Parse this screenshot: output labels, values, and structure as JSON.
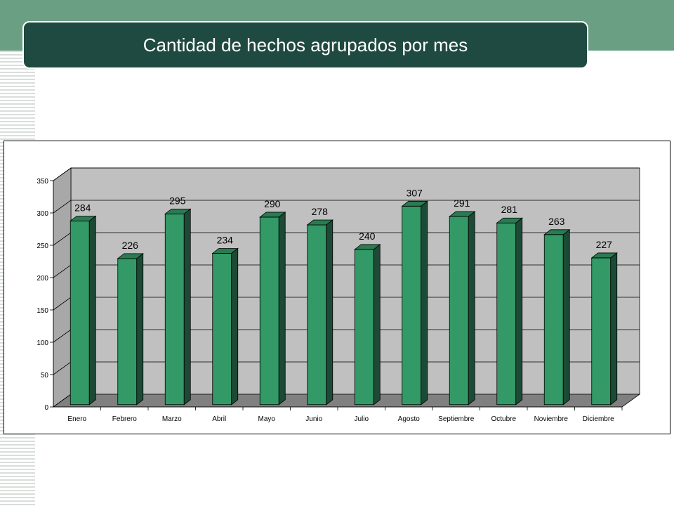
{
  "slide": {
    "title": "Cantidad de hechos agrupados por mes"
  },
  "colors": {
    "header_band": "#6a9f84",
    "title_bar": "#1f4a41",
    "bar_front": "#339966",
    "bar_side": "#1d4a36",
    "bar_top": "#2a7a52",
    "plot_back": "#c0c0c0",
    "plot_floor": "#808080"
  },
  "chart_data": {
    "type": "bar",
    "categories": [
      "Enero",
      "Febrero",
      "Marzo",
      "Abril",
      "Mayo",
      "Junio",
      "Julio",
      "Agosto",
      "Septiembre",
      "Octubre",
      "Noviembre",
      "Diciembre"
    ],
    "values": [
      284,
      226,
      295,
      234,
      290,
      278,
      240,
      307,
      291,
      281,
      263,
      227
    ],
    "data_labels": [
      "284",
      "226",
      "295",
      "234",
      "290",
      "278",
      "240",
      "307",
      "291",
      "281",
      "263",
      "227"
    ],
    "y_ticks": [
      0,
      50,
      100,
      150,
      200,
      250,
      300,
      350
    ],
    "ylim": [
      0,
      350
    ],
    "grid": true,
    "style": "3d-column",
    "title": "",
    "xlabel": "",
    "ylabel": ""
  }
}
